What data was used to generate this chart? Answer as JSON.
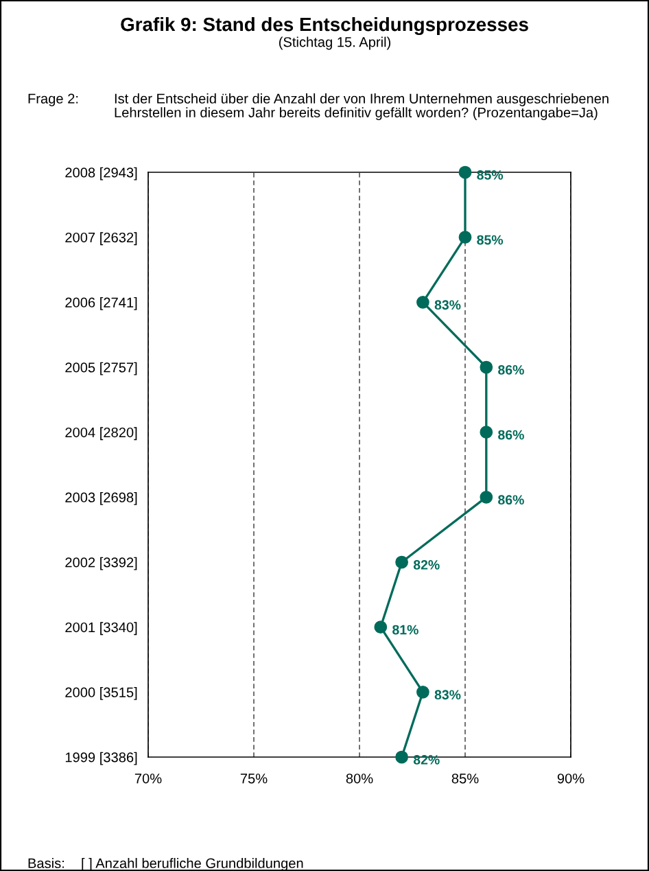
{
  "chart_data": {
    "type": "line",
    "orientation": "horizontal",
    "title": "Grafik 9: Stand des Entscheidungsprozesses",
    "subtitle": "(Stichtag 15. April)",
    "annotations": [
      "Frage 2:",
      "Ist der Entscheid über die Anzahl der von Ihrem Unternehmen ausgeschriebenen Lehrstellen in diesem Jahr bereits definitiv gefällt worden? (Prozentangabe=Ja)",
      "Basis:",
      "[ ] Anzahl berufliche Grundbildungen"
    ],
    "categories": [
      "2008 [2943]",
      "2007 [2632]",
      "2006 [2741]",
      "2005 [2757]",
      "2004 [2820]",
      "2003 [2698]",
      "2002 [3392]",
      "2001 [3340]",
      "2000 [3515]",
      "1999 [3386]"
    ],
    "series": [
      {
        "color": "#006b5b",
        "values": [
          85,
          85,
          83,
          86,
          86,
          86,
          82,
          81,
          83,
          82
        ],
        "value_labels": [
          "85%",
          "85%",
          "83%",
          "86%",
          "86%",
          "86%",
          "82%",
          "81%",
          "83%",
          "82%"
        ]
      }
    ],
    "xlim": [
      70,
      90
    ],
    "xticks": [
      {
        "value": 70,
        "label": "70%"
      },
      {
        "value": 75,
        "label": "75%"
      },
      {
        "value": 80,
        "label": "80%"
      },
      {
        "value": 85,
        "label": "85%"
      },
      {
        "value": 90,
        "label": "90%"
      }
    ],
    "grid": "x",
    "marker": "circle",
    "line_style": "solid"
  }
}
